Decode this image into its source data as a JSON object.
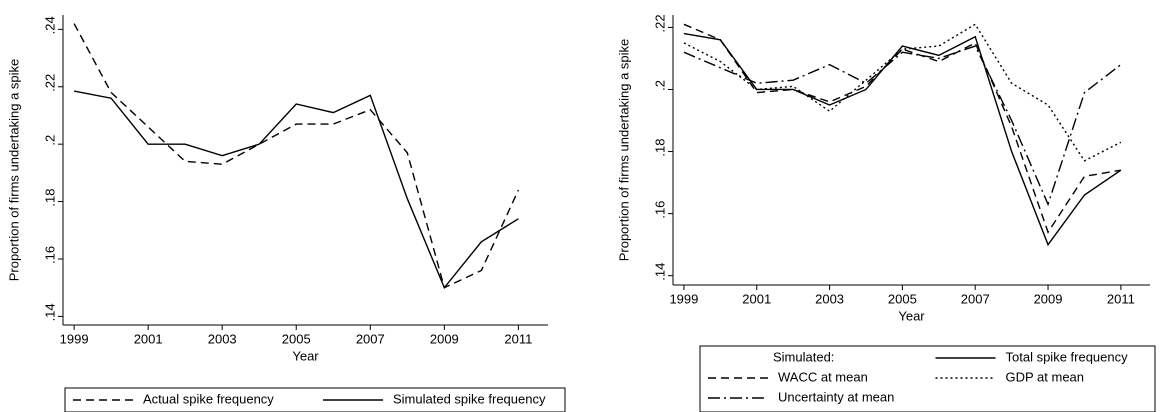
{
  "chart_data": [
    {
      "type": "line",
      "xlabel": "Year",
      "ylabel": "Proportion of firms undertaking a spike",
      "x": [
        1999,
        2000,
        2001,
        2002,
        2003,
        2004,
        2005,
        2006,
        2007,
        2008,
        2009,
        2010,
        2011
      ],
      "xlim": [
        1998.7,
        2011.8
      ],
      "xticks": [
        1999,
        2001,
        2003,
        2005,
        2007,
        2009,
        2011
      ],
      "ylim": [
        0.137,
        0.245
      ],
      "yticks": [
        {
          "value": 0.14,
          "label": ".14"
        },
        {
          "value": 0.16,
          "label": ".16"
        },
        {
          "value": 0.18,
          "label": ".18"
        },
        {
          "value": 0.2,
          "label": ".2"
        },
        {
          "value": 0.22,
          "label": ".22"
        },
        {
          "value": 0.24,
          "label": ".24"
        }
      ],
      "series": [
        {
          "name": "Actual spike frequency",
          "color": "#000000",
          "line_style": "dashed",
          "values": [
            0.242,
            0.218,
            0.206,
            0.194,
            0.193,
            0.2,
            0.207,
            0.207,
            0.212,
            0.197,
            0.15,
            0.156,
            0.184
          ]
        },
        {
          "name": "Simulated spike frequency",
          "color": "#000000",
          "line_style": "solid",
          "values": [
            0.2185,
            0.216,
            0.2,
            0.2,
            0.196,
            0.2,
            0.214,
            0.211,
            0.217,
            0.181,
            0.15,
            0.166,
            0.174
          ]
        }
      ]
    },
    {
      "type": "line",
      "xlabel": "Year",
      "ylabel": "Proportion of firms undertaking a spike",
      "legend_title": "Simulated:",
      "x": [
        1999,
        2000,
        2001,
        2002,
        2003,
        2004,
        2005,
        2006,
        2007,
        2008,
        2009,
        2010,
        2011
      ],
      "xlim": [
        1998.7,
        2011.8
      ],
      "xticks": [
        1999,
        2001,
        2003,
        2005,
        2007,
        2009,
        2011
      ],
      "ylim": [
        0.137,
        0.224
      ],
      "yticks": [
        {
          "value": 0.14,
          "label": ".14"
        },
        {
          "value": 0.16,
          "label": ".16"
        },
        {
          "value": 0.18,
          "label": ".18"
        },
        {
          "value": 0.2,
          "label": ".2"
        },
        {
          "value": 0.22,
          "label": ".22"
        }
      ],
      "series": [
        {
          "name": "Total spike frequency",
          "color": "#000000",
          "line_style": "solid",
          "values": [
            0.218,
            0.216,
            0.2,
            0.2,
            0.195,
            0.2,
            0.214,
            0.211,
            0.217,
            0.18,
            0.15,
            0.166,
            0.174
          ]
        },
        {
          "name": "WACC at mean",
          "color": "#000000",
          "line_style": "dashed",
          "values": [
            0.221,
            0.216,
            0.199,
            0.2,
            0.196,
            0.201,
            0.213,
            0.209,
            0.215,
            0.188,
            0.154,
            0.172,
            0.174
          ]
        },
        {
          "name": "GDP at mean",
          "color": "#000000",
          "line_style": "dotted",
          "values": [
            0.215,
            0.209,
            0.2,
            0.201,
            0.193,
            0.203,
            0.213,
            0.214,
            0.221,
            0.202,
            0.195,
            0.177,
            0.183
          ]
        },
        {
          "name": "Uncertainty at mean",
          "color": "#000000",
          "line_style": "dashdot",
          "values": [
            0.212,
            0.207,
            0.202,
            0.203,
            0.208,
            0.202,
            0.212,
            0.21,
            0.214,
            0.19,
            0.163,
            0.199,
            0.208
          ]
        }
      ]
    }
  ]
}
